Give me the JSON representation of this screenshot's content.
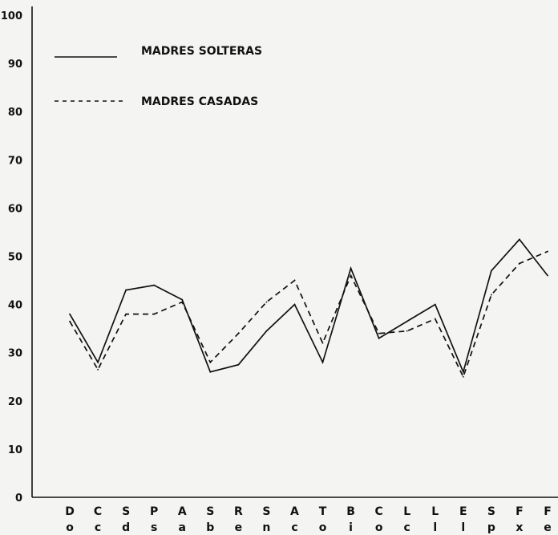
{
  "chart_data": {
    "type": "line",
    "title": "",
    "xlabel": "",
    "ylabel": "",
    "ylim": [
      0,
      100
    ],
    "yticks": [
      0,
      10,
      20,
      30,
      40,
      50,
      60,
      70,
      80,
      90,
      100
    ],
    "categories": [
      {
        "top": "D",
        "bottom": "o"
      },
      {
        "top": "C",
        "bottom": "c"
      },
      {
        "top": "S",
        "bottom": "d"
      },
      {
        "top": "P",
        "bottom": "s"
      },
      {
        "top": "A",
        "bottom": "a"
      },
      {
        "top": "S",
        "bottom": "b"
      },
      {
        "top": "R",
        "bottom": "e"
      },
      {
        "top": "S",
        "bottom": "n"
      },
      {
        "top": "A",
        "bottom": "c"
      },
      {
        "top": "T",
        "bottom": "o"
      },
      {
        "top": "B",
        "bottom": "i"
      },
      {
        "top": "C",
        "bottom": "o"
      },
      {
        "top": "L",
        "bottom": "c"
      },
      {
        "top": "L",
        "bottom": "l"
      },
      {
        "top": "E",
        "bottom": "l"
      },
      {
        "top": "S",
        "bottom": "p"
      },
      {
        "top": "F",
        "bottom": "x"
      },
      {
        "top": "F",
        "bottom": "e"
      }
    ],
    "series": [
      {
        "name": "MADRES SOLTERAS",
        "style": "solid",
        "values": [
          38,
          28,
          43,
          44,
          41,
          26,
          27.5,
          34.5,
          40,
          28,
          47.5,
          33,
          36.5,
          40,
          26,
          47,
          53.5,
          46
        ]
      },
      {
        "name": "MADRES CASADAS",
        "style": "dashed",
        "values": [
          36.5,
          26.5,
          38,
          38,
          40.5,
          28,
          34,
          40.5,
          45,
          32,
          46,
          34,
          34.5,
          37,
          25,
          42,
          48.5,
          51
        ]
      }
    ],
    "legend": "top-left",
    "grid": false,
    "color": "#111111"
  }
}
